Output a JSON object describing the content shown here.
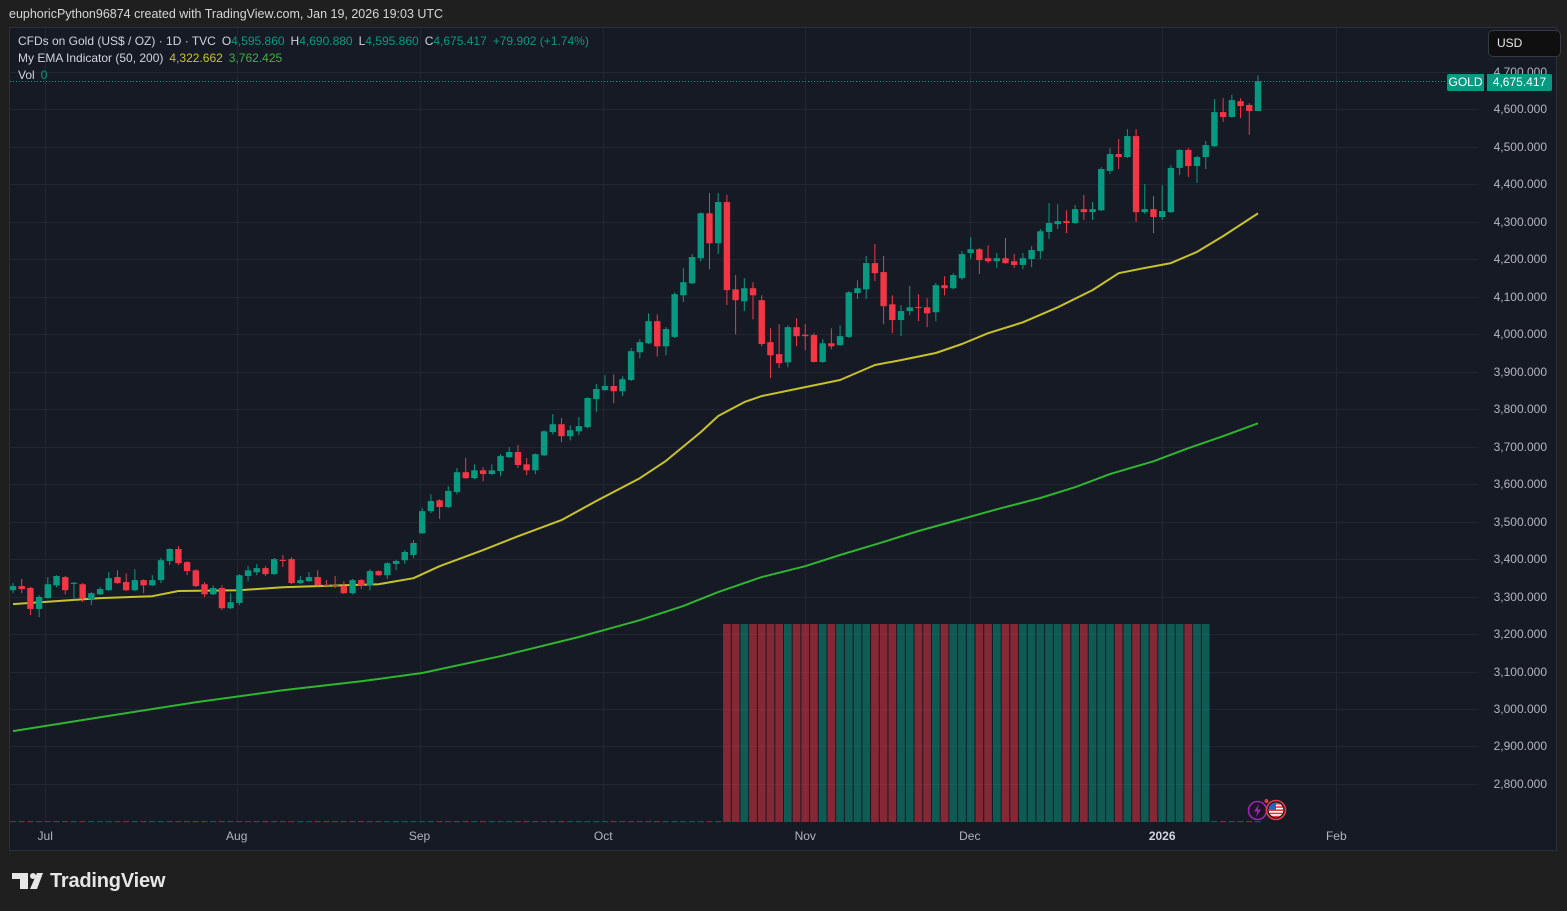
{
  "header": {
    "attribution": "euphoricPython96874 created with TradingView.com, Jan 19, 2026 19:03 UTC"
  },
  "legend": {
    "symbol": "CFDs on Gold (US$ / OZ) · 1D · TVC",
    "ohlc": [
      {
        "label": "O",
        "value": "4,595.860"
      },
      {
        "label": "H",
        "value": "4,690.880"
      },
      {
        "label": "L",
        "value": "4,595.860"
      },
      {
        "label": "C",
        "value": "4,675.417"
      }
    ],
    "change": "+79.902 (+1.74%)",
    "indicator": {
      "name": "My EMA Indicator (50, 200)",
      "fast_value": "4,322.662",
      "slow_value": "3,762.425"
    },
    "volume": {
      "label": "Vol",
      "value": "0"
    }
  },
  "price_axis": {
    "currency": "USD",
    "symbol_tag": "GOLD",
    "last_price": "4,675.417",
    "ticks": [
      "4,700.000",
      "4,600.000",
      "4,500.000",
      "4,400.000",
      "4,300.000",
      "4,200.000",
      "4,100.000",
      "4,000.000",
      "3,900.000",
      "3,800.000",
      "3,700.000",
      "3,600.000",
      "3,500.000",
      "3,400.000",
      "3,300.000",
      "3,200.000",
      "3,100.000",
      "3,000.000",
      "2,900.000",
      "2,800.000"
    ]
  },
  "time_axis": {
    "ticks": [
      {
        "label": "Jul",
        "index": 3.7,
        "bold": false
      },
      {
        "label": "Aug",
        "index": 25.7,
        "bold": false
      },
      {
        "label": "Sep",
        "index": 46.7,
        "bold": false
      },
      {
        "label": "Oct",
        "index": 67.8,
        "bold": false
      },
      {
        "label": "Nov",
        "index": 91.0,
        "bold": false
      },
      {
        "label": "Dec",
        "index": 109.9,
        "bold": false
      },
      {
        "label": "2026",
        "index": 132.0,
        "bold": true
      },
      {
        "label": "Feb",
        "index": 152.0,
        "bold": false
      }
    ]
  },
  "events": [
    {
      "type": "lightning-event",
      "color": "#9c27b0"
    },
    {
      "type": "us-flag-economic-event",
      "color": "#f23645"
    }
  ],
  "footer": {
    "brand": "TradingView"
  },
  "colors": {
    "up": "#089981",
    "down": "#f23645",
    "ema_fast": "#c8c22a",
    "ema_slow": "#2fb52f",
    "volume_up": "rgba(8,153,129,0.5)",
    "volume_down": "rgba(242,54,69,0.5)",
    "grid": "#222632"
  },
  "chart_data": {
    "type": "candlestick",
    "title": "CFDs on Gold (US$ / OZ) · 1D · TVC",
    "xlabel": "",
    "ylabel": "USD",
    "ylim": [
      2700,
      4730
    ],
    "grid": true,
    "x_tick_labels": [
      "Jul",
      "Aug",
      "Sep",
      "Oct",
      "Nov",
      "Dec",
      "2026",
      "Feb"
    ],
    "y_tick_values": [
      4700,
      4600,
      4500,
      4400,
      4300,
      4200,
      4100,
      4000,
      3900,
      3800,
      3700,
      3600,
      3500,
      3400,
      3300,
      3200,
      3100,
      3000,
      2900,
      2800
    ],
    "last_price": 4675.417,
    "ohlc_fields": [
      "open",
      "high",
      "low",
      "close"
    ],
    "candles": [
      [
        3317,
        3336,
        3309,
        3328
      ],
      [
        3328,
        3347,
        3309,
        3320
      ],
      [
        3323,
        3326,
        3251,
        3267
      ],
      [
        3267,
        3304,
        3245,
        3299
      ],
      [
        3296,
        3352,
        3294,
        3333
      ],
      [
        3330,
        3357,
        3325,
        3355
      ],
      [
        3352,
        3355,
        3306,
        3317
      ],
      [
        3334,
        3339,
        3293,
        3337
      ],
      [
        3333,
        3336,
        3285,
        3296
      ],
      [
        3293,
        3312,
        3277,
        3309
      ],
      [
        3306,
        3325,
        3304,
        3320
      ],
      [
        3317,
        3365,
        3315,
        3349
      ],
      [
        3352,
        3370,
        3334,
        3336
      ],
      [
        3339,
        3362,
        3315,
        3317
      ],
      [
        3317,
        3373,
        3315,
        3344
      ],
      [
        3344,
        3346,
        3309,
        3330
      ],
      [
        3330,
        3357,
        3328,
        3344
      ],
      [
        3344,
        3403,
        3336,
        3397
      ],
      [
        3395,
        3429,
        3384,
        3427
      ],
      [
        3427,
        3435,
        3384,
        3389
      ],
      [
        3392,
        3395,
        3357,
        3368
      ],
      [
        3370,
        3373,
        3325,
        3328
      ],
      [
        3333,
        3339,
        3299,
        3306
      ],
      [
        3306,
        3330,
        3304,
        3323
      ],
      [
        3323,
        3330,
        3264,
        3269
      ],
      [
        3269,
        3309,
        3267,
        3285
      ],
      [
        3283,
        3360,
        3277,
        3357
      ],
      [
        3355,
        3381,
        3341,
        3370
      ],
      [
        3365,
        3387,
        3357,
        3376
      ],
      [
        3376,
        3381,
        3355,
        3360
      ],
      [
        3360,
        3403,
        3358,
        3400
      ],
      [
        3398,
        3411,
        3379,
        3395
      ],
      [
        3400,
        3405,
        3333,
        3336
      ],
      [
        3336,
        3355,
        3333,
        3344
      ],
      [
        3341,
        3365,
        3339,
        3352
      ],
      [
        3352,
        3370,
        3328,
        3330
      ],
      [
        3331,
        3344,
        3328,
        3329
      ],
      [
        3331,
        3355,
        3323,
        3329
      ],
      [
        3328,
        3341,
        3307,
        3309
      ],
      [
        3309,
        3347,
        3306,
        3344
      ],
      [
        3344,
        3347,
        3320,
        3330
      ],
      [
        3330,
        3373,
        3317,
        3368
      ],
      [
        3368,
        3370,
        3355,
        3357
      ],
      [
        3357,
        3392,
        3347,
        3389
      ],
      [
        3387,
        3398,
        3370,
        3395
      ],
      [
        3397,
        3424,
        3387,
        3419
      ],
      [
        3411,
        3451,
        3403,
        3443
      ],
      [
        3469,
        3536,
        3467,
        3528
      ],
      [
        3528,
        3573,
        3523,
        3555
      ],
      [
        3557,
        3560,
        3507,
        3539
      ],
      [
        3539,
        3595,
        3536,
        3582
      ],
      [
        3579,
        3643,
        3573,
        3632
      ],
      [
        3632,
        3670,
        3614,
        3616
      ],
      [
        3616,
        3653,
        3613,
        3637
      ],
      [
        3637,
        3645,
        3608,
        3627
      ],
      [
        3627,
        3653,
        3625,
        3637
      ],
      [
        3635,
        3680,
        3621,
        3675
      ],
      [
        3672,
        3699,
        3670,
        3686
      ],
      [
        3686,
        3705,
        3643,
        3651
      ],
      [
        3653,
        3670,
        3624,
        3637
      ],
      [
        3637,
        3682,
        3627,
        3680
      ],
      [
        3677,
        3744,
        3675,
        3741
      ],
      [
        3739,
        3787,
        3733,
        3760
      ],
      [
        3760,
        3776,
        3712,
        3728
      ],
      [
        3728,
        3757,
        3717,
        3744
      ],
      [
        3741,
        3779,
        3731,
        3755
      ],
      [
        3752,
        3832,
        3749,
        3830
      ],
      [
        3827,
        3867,
        3792,
        3854
      ],
      [
        3851,
        3891,
        3849,
        3862
      ],
      [
        3862,
        3893,
        3816,
        3848
      ],
      [
        3848,
        3888,
        3835,
        3880
      ],
      [
        3878,
        3963,
        3875,
        3955
      ],
      [
        3952,
        3987,
        3936,
        3979
      ],
      [
        3976,
        4056,
        3974,
        4035
      ],
      [
        4035,
        4053,
        3941,
        3968
      ],
      [
        3968,
        4019,
        3944,
        4014
      ],
      [
        3993,
        4112,
        3990,
        4107
      ],
      [
        4104,
        4177,
        4086,
        4139
      ],
      [
        4136,
        4214,
        4134,
        4206
      ],
      [
        4203,
        4326,
        4195,
        4323
      ],
      [
        4323,
        4377,
        4174,
        4243
      ],
      [
        4243,
        4377,
        4214,
        4353
      ],
      [
        4353,
        4372,
        4078,
        4118
      ],
      [
        4120,
        4158,
        4000,
        4091
      ],
      [
        4088,
        4150,
        4062,
        4123
      ],
      [
        4123,
        4139,
        4040,
        4104
      ],
      [
        4091,
        4104,
        3968,
        3974
      ],
      [
        3979,
        4016,
        3883,
        3944
      ],
      [
        3947,
        4027,
        3910,
        3923
      ],
      [
        3925,
        4024,
        3912,
        4019
      ],
      [
        4019,
        4043,
        3968,
        3995
      ],
      [
        3999,
        4027,
        3957,
        3995
      ],
      [
        3998,
        4003,
        3925,
        3926
      ],
      [
        3926,
        3987,
        3924,
        3976
      ],
      [
        3976,
        4016,
        3960,
        3968
      ],
      [
        3971,
        4024,
        3969,
        3995
      ],
      [
        3993,
        4115,
        3990,
        4112
      ],
      [
        4110,
        4144,
        4094,
        4123
      ],
      [
        4120,
        4209,
        4094,
        4190
      ],
      [
        4190,
        4241,
        4142,
        4163
      ],
      [
        4166,
        4209,
        4027,
        4075
      ],
      [
        4080,
        4104,
        4003,
        4038
      ],
      [
        4038,
        4078,
        3995,
        4062
      ],
      [
        4062,
        4129,
        4051,
        4072
      ],
      [
        4073,
        4107,
        4035,
        4070
      ],
      [
        4072,
        4096,
        4019,
        4056
      ],
      [
        4059,
        4137,
        4035,
        4131
      ],
      [
        4131,
        4155,
        4104,
        4123
      ],
      [
        4123,
        4163,
        4120,
        4158
      ],
      [
        4150,
        4222,
        4145,
        4214
      ],
      [
        4217,
        4259,
        4201,
        4227
      ],
      [
        4227,
        4230,
        4161,
        4198
      ],
      [
        4203,
        4238,
        4190,
        4195
      ],
      [
        4195,
        4217,
        4177,
        4203
      ],
      [
        4203,
        4257,
        4188,
        4190
      ],
      [
        4195,
        4214,
        4177,
        4185
      ],
      [
        4185,
        4217,
        4174,
        4203
      ],
      [
        4201,
        4235,
        4179,
        4225
      ],
      [
        4222,
        4281,
        4201,
        4275
      ],
      [
        4273,
        4350,
        4254,
        4297
      ],
      [
        4294,
        4347,
        4281,
        4302
      ],
      [
        4302,
        4331,
        4270,
        4297
      ],
      [
        4297,
        4345,
        4294,
        4334
      ],
      [
        4334,
        4372,
        4305,
        4326
      ],
      [
        4326,
        4353,
        4305,
        4334
      ],
      [
        4331,
        4446,
        4329,
        4441
      ],
      [
        4436,
        4497,
        4428,
        4481
      ],
      [
        4481,
        4521,
        4441,
        4473
      ],
      [
        4473,
        4548,
        4470,
        4529
      ],
      [
        4529,
        4548,
        4300,
        4326
      ],
      [
        4326,
        4401,
        4321,
        4334
      ],
      [
        4334,
        4369,
        4270,
        4313
      ],
      [
        4313,
        4398,
        4305,
        4329
      ],
      [
        4326,
        4451,
        4324,
        4444
      ],
      [
        4444,
        4494,
        4425,
        4492
      ],
      [
        4492,
        4497,
        4420,
        4449
      ],
      [
        4449,
        4476,
        4404,
        4473
      ],
      [
        4473,
        4516,
        4441,
        4505
      ],
      [
        4502,
        4628,
        4500,
        4593
      ],
      [
        4593,
        4630,
        4567,
        4580
      ],
      [
        4580,
        4639,
        4578,
        4625
      ],
      [
        4622,
        4630,
        4577,
        4609
      ],
      [
        4612,
        4617,
        4532,
        4596
      ],
      [
        4595.86,
        4690.88,
        4595.86,
        4675.417
      ]
    ],
    "series": [
      {
        "name": "EMA 50",
        "color": "#c8c22a",
        "points": [
          [
            0,
            3280
          ],
          [
            10,
            3296
          ],
          [
            16,
            3301
          ],
          [
            19,
            3315
          ],
          [
            26,
            3317
          ],
          [
            31,
            3325
          ],
          [
            38,
            3330
          ],
          [
            42,
            3333
          ],
          [
            46,
            3349
          ],
          [
            49,
            3381
          ],
          [
            54,
            3424
          ],
          [
            58,
            3461
          ],
          [
            63,
            3504
          ],
          [
            67,
            3555
          ],
          [
            72,
            3616
          ],
          [
            75,
            3662
          ],
          [
            79,
            3739
          ],
          [
            81,
            3782
          ],
          [
            84,
            3819
          ],
          [
            86,
            3835
          ],
          [
            91,
            3859
          ],
          [
            95,
            3878
          ],
          [
            99,
            3918
          ],
          [
            102,
            3931
          ],
          [
            106,
            3950
          ],
          [
            109,
            3974
          ],
          [
            112,
            4003
          ],
          [
            116,
            4032
          ],
          [
            120,
            4072
          ],
          [
            124,
            4118
          ],
          [
            127,
            4163
          ],
          [
            130,
            4177
          ],
          [
            133,
            4190
          ],
          [
            136,
            4220
          ],
          [
            139,
            4262
          ],
          [
            143,
            4322.662
          ]
        ]
      },
      {
        "name": "EMA 200",
        "color": "#2fb52f",
        "points": [
          [
            0,
            2941
          ],
          [
            10,
            2978
          ],
          [
            21,
            3018
          ],
          [
            31,
            3050
          ],
          [
            40,
            3074
          ],
          [
            47,
            3096
          ],
          [
            56,
            3141
          ],
          [
            65,
            3192
          ],
          [
            72,
            3237
          ],
          [
            77,
            3275
          ],
          [
            81,
            3312
          ],
          [
            86,
            3352
          ],
          [
            91,
            3381
          ],
          [
            95,
            3411
          ],
          [
            100,
            3446
          ],
          [
            104,
            3475
          ],
          [
            109,
            3507
          ],
          [
            113,
            3533
          ],
          [
            118,
            3563
          ],
          [
            122,
            3592
          ],
          [
            126,
            3627
          ],
          [
            131,
            3661
          ],
          [
            135,
            3696
          ],
          [
            139,
            3728
          ],
          [
            143,
            3762.425
          ]
        ]
      }
    ],
    "volume_relative": [
      0,
      0,
      0,
      0,
      0,
      0,
      0,
      0,
      0,
      0,
      0,
      0,
      0,
      0,
      0,
      0,
      0,
      0,
      0,
      0,
      0,
      0,
      0,
      0,
      0,
      0,
      0,
      0,
      0,
      0,
      0,
      0,
      0,
      0,
      0,
      0,
      0,
      0,
      0,
      0,
      0,
      0,
      0,
      0,
      0,
      0,
      0,
      0,
      0,
      0,
      0,
      0,
      0,
      0,
      0,
      0,
      0,
      0,
      0,
      0,
      0,
      0,
      0,
      0,
      0,
      0,
      0,
      0,
      0,
      0,
      0,
      0,
      0,
      0,
      0,
      0,
      0,
      0,
      0,
      0,
      0,
      0,
      1,
      1,
      1,
      1,
      1,
      1,
      1,
      1,
      1,
      1,
      1,
      1,
      1,
      1,
      1,
      1,
      1,
      1,
      1,
      1,
      1,
      1,
      1,
      1,
      1,
      1,
      1,
      1,
      1,
      1,
      1,
      1,
      1,
      1,
      1,
      1,
      1,
      1,
      1,
      1,
      1,
      1,
      1,
      1,
      1,
      1,
      1,
      1,
      1,
      1,
      1,
      1,
      1,
      1,
      1,
      1,
      0,
      0,
      0,
      0,
      0,
      0
    ]
  }
}
